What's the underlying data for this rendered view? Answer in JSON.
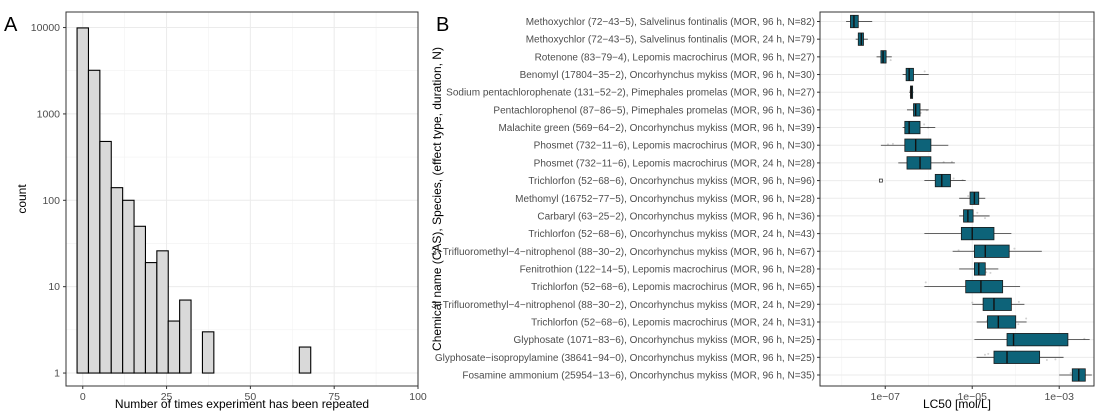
{
  "panels": {
    "a_letter": "A",
    "b_letter": "B"
  },
  "chart_data": [
    {
      "type": "bar",
      "title": "",
      "xlabel": "Number of times experiment has been repeated",
      "ylabel": "count",
      "y_scale": "log10",
      "xlim": [
        -5,
        100
      ],
      "ylim": [
        1,
        10000
      ],
      "x_ticks": [
        0,
        25,
        50,
        75,
        100
      ],
      "y_ticks": [
        1,
        10,
        100,
        1000,
        10000
      ],
      "y_tick_labels": [
        "1",
        "10",
        "100",
        "1000",
        "10000"
      ],
      "bin_width": 3.4,
      "bars_color": "#d9d9d9",
      "bars": [
        {
          "x_start": -1.7,
          "x_end": 1.7,
          "count": 9900
        },
        {
          "x_start": 1.7,
          "x_end": 5.1,
          "count": 3200
        },
        {
          "x_start": 5.1,
          "x_end": 8.5,
          "count": 480
        },
        {
          "x_start": 8.5,
          "x_end": 11.9,
          "count": 140
        },
        {
          "x_start": 11.9,
          "x_end": 15.3,
          "count": 100
        },
        {
          "x_start": 15.3,
          "x_end": 18.7,
          "count": 50
        },
        {
          "x_start": 18.7,
          "x_end": 22.1,
          "count": 19
        },
        {
          "x_start": 22.1,
          "x_end": 25.5,
          "count": 26
        },
        {
          "x_start": 25.5,
          "x_end": 28.9,
          "count": 4
        },
        {
          "x_start": 28.9,
          "x_end": 32.3,
          "count": 7
        },
        {
          "x_start": 32.3,
          "x_end": 35.7,
          "count": 1
        },
        {
          "x_start": 35.7,
          "x_end": 39.1,
          "count": 3
        },
        {
          "x_start": 39.1,
          "x_end": 42.5,
          "count": 1
        },
        {
          "x_start": 42.5,
          "x_end": 45.9,
          "count": 1
        },
        {
          "x_start": 64.6,
          "x_end": 68.0,
          "count": 2
        },
        {
          "x_start": 78.2,
          "x_end": 81.6,
          "count": 1
        },
        {
          "x_start": 95.2,
          "x_end": 98.6,
          "count": 1
        }
      ],
      "grid": true
    },
    {
      "type": "box",
      "title": "",
      "xlabel": "LC50 [mol/L]",
      "ylabel": "Chemical name (CAS), Species, (effect type, duration, N)",
      "x_scale": "log10",
      "xlim_log10": [
        -8.5,
        -2.2
      ],
      "x_ticks_log10": [
        -7,
        -5,
        -3
      ],
      "x_tick_labels": [
        "1e−07",
        "1e−05",
        "1e−03"
      ],
      "fill": "#0d6379",
      "grid": true,
      "boxes": [
        {
          "label": "Methoxychlor (72−43−5), Salvelinus fontinalis (MOR, 96 h, N=82)",
          "whisker_low": -7.9,
          "q1": -7.8,
          "median": -7.72,
          "q3": -7.62,
          "whisker_high": -7.3
        },
        {
          "label": "Methoxychlor (72−43−5), Salvelinus fontinalis (MOR, 24 h, N=79)",
          "whisker_low": -7.68,
          "q1": -7.62,
          "median": -7.55,
          "q3": -7.5,
          "whisker_high": -7.4
        },
        {
          "label": "Rotenone (83−79−4), Lepomis macrochirus (MOR, 96 h, N=27)",
          "whisker_low": -7.2,
          "q1": -7.1,
          "median": -7.05,
          "q3": -6.98,
          "whisker_high": -6.85
        },
        {
          "label": "Benomyl (17804−35−2), Oncorhynchus mykiss (MOR, 96 h, N=30)",
          "whisker_low": -6.6,
          "q1": -6.52,
          "median": -6.45,
          "q3": -6.35,
          "whisker_high": -6.0
        },
        {
          "label": "Sodium pentachlorophenate (131−52−2), Pimephales promelas (MOR, 96 h, N=27)",
          "whisker_low": -6.45,
          "q1": -6.42,
          "median": -6.4,
          "q3": -6.37,
          "whisker_high": -6.35
        },
        {
          "label": "Pentachlorophenol (87−86−5), Pimephales promelas (MOR, 96 h, N=36)",
          "whisker_low": -6.5,
          "q1": -6.35,
          "median": -6.3,
          "q3": -6.2,
          "whisker_high": -6.0
        },
        {
          "label": "Malachite green (569−64−2), Oncorhynchus mykiss (MOR, 96 h, N=39)",
          "whisker_low": -6.6,
          "q1": -6.55,
          "median": -6.45,
          "q3": -6.2,
          "whisker_high": -5.85
        },
        {
          "label": "Phosmet (732−11−6), Lepomis macrochirus (MOR, 96 h, N=30)",
          "whisker_low": -7.1,
          "q1": -6.55,
          "median": -6.3,
          "q3": -5.95,
          "whisker_high": -5.55
        },
        {
          "label": "Phosmet (732−11−6), Lepomis macrochirus (MOR, 24 h, N=28)",
          "whisker_low": -6.7,
          "q1": -6.5,
          "median": -6.2,
          "q3": -5.95,
          "whisker_high": -5.4
        },
        {
          "label": "Trichlorfon (52−68−6), Oncorhynchus mykiss (MOR, 96 h, N=96)",
          "whisker_low": -6.1,
          "q1": -5.85,
          "median": -5.7,
          "q3": -5.5,
          "whisker_high": -5.15,
          "outliers": [
            -7.1
          ]
        },
        {
          "label": "Methomyl (16752−77−5), Oncorhynchus mykiss (MOR, 96 h, N=28)",
          "whisker_low": -5.3,
          "q1": -5.05,
          "median": -4.95,
          "q3": -4.85,
          "whisker_high": -4.7
        },
        {
          "label": "Carbaryl (63−25−2), Oncorhynchus mykiss (MOR, 96 h, N=36)",
          "whisker_low": -5.3,
          "q1": -5.2,
          "median": -5.1,
          "q3": -4.98,
          "whisker_high": -4.6
        },
        {
          "label": "Trichlorfon (52−68−6), Oncorhynchus mykiss (MOR, 24 h, N=43)",
          "whisker_low": -6.1,
          "q1": -5.25,
          "median": -5.0,
          "q3": -4.5,
          "whisker_high": -4.1
        },
        {
          "label": "3−Trifluoromethyl−4−nitrophenol (88−30−2), Oncorhynchus mykiss (MOR, 96 h, N=67)",
          "whisker_low": -5.45,
          "q1": -4.95,
          "median": -4.7,
          "q3": -4.15,
          "whisker_high": -3.4
        },
        {
          "label": "Fenitrothion (122−14−5), Lepomis macrochirus (MOR, 96 h, N=28)",
          "whisker_low": -5.3,
          "q1": -4.95,
          "median": -4.85,
          "q3": -4.7,
          "whisker_high": -4.4
        },
        {
          "label": "Trichlorfon (52−68−6), Lepomis macrochirus (MOR, 96 h, N=65)",
          "whisker_low": -6.1,
          "q1": -5.15,
          "median": -4.8,
          "q3": -4.3,
          "whisker_high": -3.9
        },
        {
          "label": "3−Trifluoromethyl−4−nitrophenol (88−30−2), Oncorhynchus mykiss (MOR, 24 h, N=29)",
          "whisker_low": -5.0,
          "q1": -4.75,
          "median": -4.5,
          "q3": -4.1,
          "whisker_high": -3.8
        },
        {
          "label": "Trichlorfon (52−68−6), Lepomis macrochirus (MOR, 24 h, N=31)",
          "whisker_low": -4.9,
          "q1": -4.65,
          "median": -4.4,
          "q3": -4.0,
          "whisker_high": -3.75
        },
        {
          "label": "Glyphosate (1071−83−6), Oncorhynchus mykiss (MOR, 96 h, N=25)",
          "whisker_low": -4.95,
          "q1": -4.2,
          "median": -4.05,
          "q3": -2.8,
          "whisker_high": -2.3
        },
        {
          "label": "Glyphosate−isopropylamine (38641−94−0), Oncorhynchus mykiss (MOR, 96 h, N=25)",
          "whisker_low": -4.9,
          "q1": -4.5,
          "median": -4.2,
          "q3": -3.45,
          "whisker_high": -2.9
        },
        {
          "label": "Fosamine ammonium (25954−13−6), Oncorhynchus mykiss (MOR, 96 h, N=35)",
          "whisker_low": -3.0,
          "q1": -2.7,
          "median": -2.55,
          "q3": -2.4,
          "whisker_high": -2.25
        }
      ]
    }
  ]
}
